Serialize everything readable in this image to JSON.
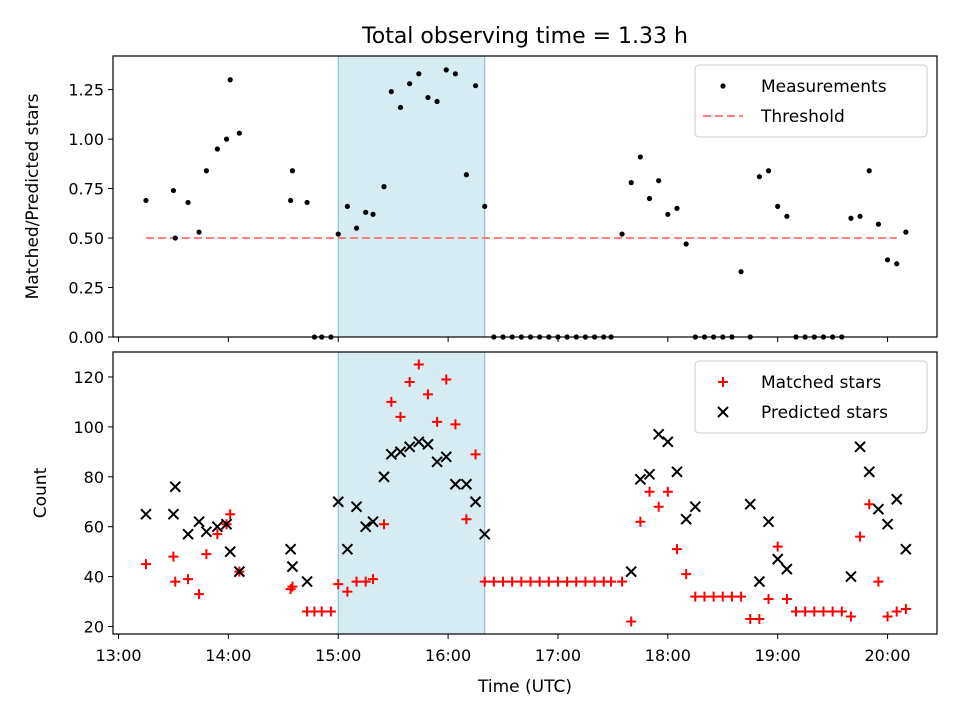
{
  "title": "Total observing time = 1.33 h",
  "chart_data": [
    {
      "type": "scatter",
      "ylabel": "Matched/Predicted stars",
      "xlim": [
        "12:57",
        "20:27"
      ],
      "ylim": [
        0,
        1.42
      ],
      "y_ticks": [
        "0.00",
        "0.25",
        "0.50",
        "0.75",
        "1.00",
        "1.25"
      ],
      "legend_position": "top-right",
      "shaded_interval": {
        "start": "15:00",
        "end": "16:20",
        "color": "#add8e6"
      },
      "threshold": {
        "name": "Threshold",
        "value": 0.5,
        "x_start": "13:15",
        "x_end": "20:05",
        "color": "#ff7f7f"
      },
      "series": [
        {
          "name": "Measurements",
          "color": "#000000",
          "points": [
            [
              "13:15",
              0.69
            ],
            [
              "13:30",
              0.74
            ],
            [
              "13:31",
              0.5
            ],
            [
              "13:38",
              0.68
            ],
            [
              "13:44",
              0.53
            ],
            [
              "13:48",
              0.84
            ],
            [
              "13:54",
              0.95
            ],
            [
              "13:59",
              1.0
            ],
            [
              "14:01",
              1.3
            ],
            [
              "14:06",
              1.03
            ],
            [
              "14:34",
              0.69
            ],
            [
              "14:35",
              0.84
            ],
            [
              "14:43",
              0.68
            ],
            [
              "14:47",
              0.0
            ],
            [
              "14:51",
              0.0
            ],
            [
              "14:56",
              0.0
            ],
            [
              "15:00",
              0.52
            ],
            [
              "15:05",
              0.66
            ],
            [
              "15:10",
              0.55
            ],
            [
              "15:15",
              0.63
            ],
            [
              "15:19",
              0.62
            ],
            [
              "15:25",
              0.76
            ],
            [
              "15:29",
              1.24
            ],
            [
              "15:34",
              1.16
            ],
            [
              "15:39",
              1.28
            ],
            [
              "15:44",
              1.33
            ],
            [
              "15:49",
              1.21
            ],
            [
              "15:54",
              1.19
            ],
            [
              "15:59",
              1.35
            ],
            [
              "16:04",
              1.33
            ],
            [
              "16:10",
              0.82
            ],
            [
              "16:15",
              1.27
            ],
            [
              "16:20",
              0.66
            ],
            [
              "16:25",
              0.0
            ],
            [
              "16:30",
              0.0
            ],
            [
              "16:35",
              0.0
            ],
            [
              "16:40",
              0.0
            ],
            [
              "16:45",
              0.0
            ],
            [
              "16:50",
              0.0
            ],
            [
              "16:55",
              0.0
            ],
            [
              "17:00",
              0.0
            ],
            [
              "17:05",
              0.0
            ],
            [
              "17:10",
              0.0
            ],
            [
              "17:15",
              0.0
            ],
            [
              "17:20",
              0.0
            ],
            [
              "17:25",
              0.0
            ],
            [
              "17:29",
              0.0
            ],
            [
              "17:35",
              0.52
            ],
            [
              "17:40",
              0.78
            ],
            [
              "17:45",
              0.91
            ],
            [
              "17:50",
              0.7
            ],
            [
              "17:55",
              0.79
            ],
            [
              "18:00",
              0.62
            ],
            [
              "18:05",
              0.65
            ],
            [
              "18:10",
              0.47
            ],
            [
              "18:15",
              0.0
            ],
            [
              "18:20",
              0.0
            ],
            [
              "18:25",
              0.0
            ],
            [
              "18:30",
              0.0
            ],
            [
              "18:35",
              0.0
            ],
            [
              "18:40",
              0.33
            ],
            [
              "18:45",
              0.0
            ],
            [
              "18:50",
              0.81
            ],
            [
              "18:55",
              0.84
            ],
            [
              "19:00",
              0.66
            ],
            [
              "19:05",
              0.61
            ],
            [
              "19:10",
              0.0
            ],
            [
              "19:15",
              0.0
            ],
            [
              "19:20",
              0.0
            ],
            [
              "19:25",
              0.0
            ],
            [
              "19:30",
              0.0
            ],
            [
              "19:35",
              0.0
            ],
            [
              "19:40",
              0.6
            ],
            [
              "19:45",
              0.61
            ],
            [
              "19:50",
              0.84
            ],
            [
              "19:55",
              0.57
            ],
            [
              "20:00",
              0.39
            ],
            [
              "20:05",
              0.37
            ],
            [
              "20:10",
              0.53
            ]
          ]
        }
      ]
    },
    {
      "type": "scatter",
      "xlabel": "Time (UTC)",
      "ylabel": "Count",
      "xlim": [
        "12:57",
        "20:27"
      ],
      "ylim": [
        17,
        130
      ],
      "y_ticks": [
        "20",
        "40",
        "60",
        "80",
        "100",
        "120"
      ],
      "x_ticks": [
        "13:00",
        "14:00",
        "15:00",
        "16:00",
        "17:00",
        "18:00",
        "19:00",
        "20:00"
      ],
      "legend_position": "top-right",
      "shaded_interval": {
        "start": "15:00",
        "end": "16:20",
        "color": "#add8e6"
      },
      "series": [
        {
          "name": "Matched stars",
          "marker": "+",
          "color": "#ff0000",
          "points": [
            [
              "13:15",
              45
            ],
            [
              "13:30",
              48
            ],
            [
              "13:31",
              38
            ],
            [
              "13:38",
              39
            ],
            [
              "13:44",
              33
            ],
            [
              "13:48",
              49
            ],
            [
              "13:54",
              57
            ],
            [
              "13:59",
              61
            ],
            [
              "14:01",
              65
            ],
            [
              "14:06",
              42
            ],
            [
              "14:34",
              35
            ],
            [
              "14:35",
              36
            ],
            [
              "14:43",
              26
            ],
            [
              "14:47",
              26
            ],
            [
              "14:51",
              26
            ],
            [
              "14:56",
              26
            ],
            [
              "15:00",
              37
            ],
            [
              "15:05",
              34
            ],
            [
              "15:10",
              38
            ],
            [
              "15:15",
              38
            ],
            [
              "15:19",
              39
            ],
            [
              "15:25",
              61
            ],
            [
              "15:29",
              110
            ],
            [
              "15:34",
              104
            ],
            [
              "15:39",
              118
            ],
            [
              "15:44",
              125
            ],
            [
              "15:49",
              113
            ],
            [
              "15:54",
              102
            ],
            [
              "15:59",
              119
            ],
            [
              "16:04",
              101
            ],
            [
              "16:10",
              63
            ],
            [
              "16:15",
              89
            ],
            [
              "16:20",
              38
            ],
            [
              "16:25",
              38
            ],
            [
              "16:30",
              38
            ],
            [
              "16:35",
              38
            ],
            [
              "16:40",
              38
            ],
            [
              "16:45",
              38
            ],
            [
              "16:50",
              38
            ],
            [
              "16:55",
              38
            ],
            [
              "17:00",
              38
            ],
            [
              "17:05",
              38
            ],
            [
              "17:10",
              38
            ],
            [
              "17:15",
              38
            ],
            [
              "17:20",
              38
            ],
            [
              "17:25",
              38
            ],
            [
              "17:29",
              38
            ],
            [
              "17:35",
              38
            ],
            [
              "17:40",
              22
            ],
            [
              "17:45",
              62
            ],
            [
              "17:50",
              74
            ],
            [
              "17:55",
              68
            ],
            [
              "18:00",
              74
            ],
            [
              "18:05",
              51
            ],
            [
              "18:10",
              41
            ],
            [
              "18:15",
              32
            ],
            [
              "18:20",
              32
            ],
            [
              "18:25",
              32
            ],
            [
              "18:30",
              32
            ],
            [
              "18:35",
              32
            ],
            [
              "18:40",
              32
            ],
            [
              "18:45",
              23
            ],
            [
              "18:50",
              23
            ],
            [
              "18:55",
              31
            ],
            [
              "19:00",
              52
            ],
            [
              "19:05",
              31
            ],
            [
              "19:10",
              26
            ],
            [
              "19:15",
              26
            ],
            [
              "19:20",
              26
            ],
            [
              "19:25",
              26
            ],
            [
              "19:30",
              26
            ],
            [
              "19:35",
              26
            ],
            [
              "19:40",
              24
            ],
            [
              "19:45",
              56
            ],
            [
              "19:50",
              69
            ],
            [
              "19:55",
              38
            ],
            [
              "20:00",
              24
            ],
            [
              "20:05",
              26
            ],
            [
              "20:10",
              27
            ]
          ]
        },
        {
          "name": "Predicted stars",
          "marker": "x",
          "color": "#000000",
          "points": [
            [
              "13:15",
              65
            ],
            [
              "13:30",
              65
            ],
            [
              "13:31",
              76
            ],
            [
              "13:38",
              57
            ],
            [
              "13:44",
              62
            ],
            [
              "13:48",
              58
            ],
            [
              "13:54",
              60
            ],
            [
              "13:59",
              61
            ],
            [
              "14:01",
              50
            ],
            [
              "14:06",
              42
            ],
            [
              "14:34",
              51
            ],
            [
              "14:35",
              44
            ],
            [
              "14:43",
              38
            ],
            [
              "15:00",
              70
            ],
            [
              "15:05",
              51
            ],
            [
              "15:10",
              68
            ],
            [
              "15:15",
              60
            ],
            [
              "15:19",
              62
            ],
            [
              "15:25",
              80
            ],
            [
              "15:29",
              89
            ],
            [
              "15:34",
              90
            ],
            [
              "15:39",
              92
            ],
            [
              "15:44",
              94
            ],
            [
              "15:49",
              93
            ],
            [
              "15:54",
              86
            ],
            [
              "15:59",
              88
            ],
            [
              "16:04",
              77
            ],
            [
              "16:10",
              77
            ],
            [
              "16:15",
              70
            ],
            [
              "16:20",
              57
            ],
            [
              "17:40",
              42
            ],
            [
              "17:45",
              79
            ],
            [
              "17:50",
              81
            ],
            [
              "17:55",
              97
            ],
            [
              "18:00",
              94
            ],
            [
              "18:05",
              82
            ],
            [
              "18:10",
              63
            ],
            [
              "18:15",
              68
            ],
            [
              "18:45",
              69
            ],
            [
              "18:50",
              38
            ],
            [
              "18:55",
              62
            ],
            [
              "19:00",
              47
            ],
            [
              "19:05",
              43
            ],
            [
              "19:40",
              40
            ],
            [
              "19:45",
              92
            ],
            [
              "19:50",
              82
            ],
            [
              "19:55",
              67
            ],
            [
              "20:00",
              61
            ],
            [
              "20:05",
              71
            ],
            [
              "20:10",
              51
            ]
          ]
        }
      ]
    }
  ]
}
